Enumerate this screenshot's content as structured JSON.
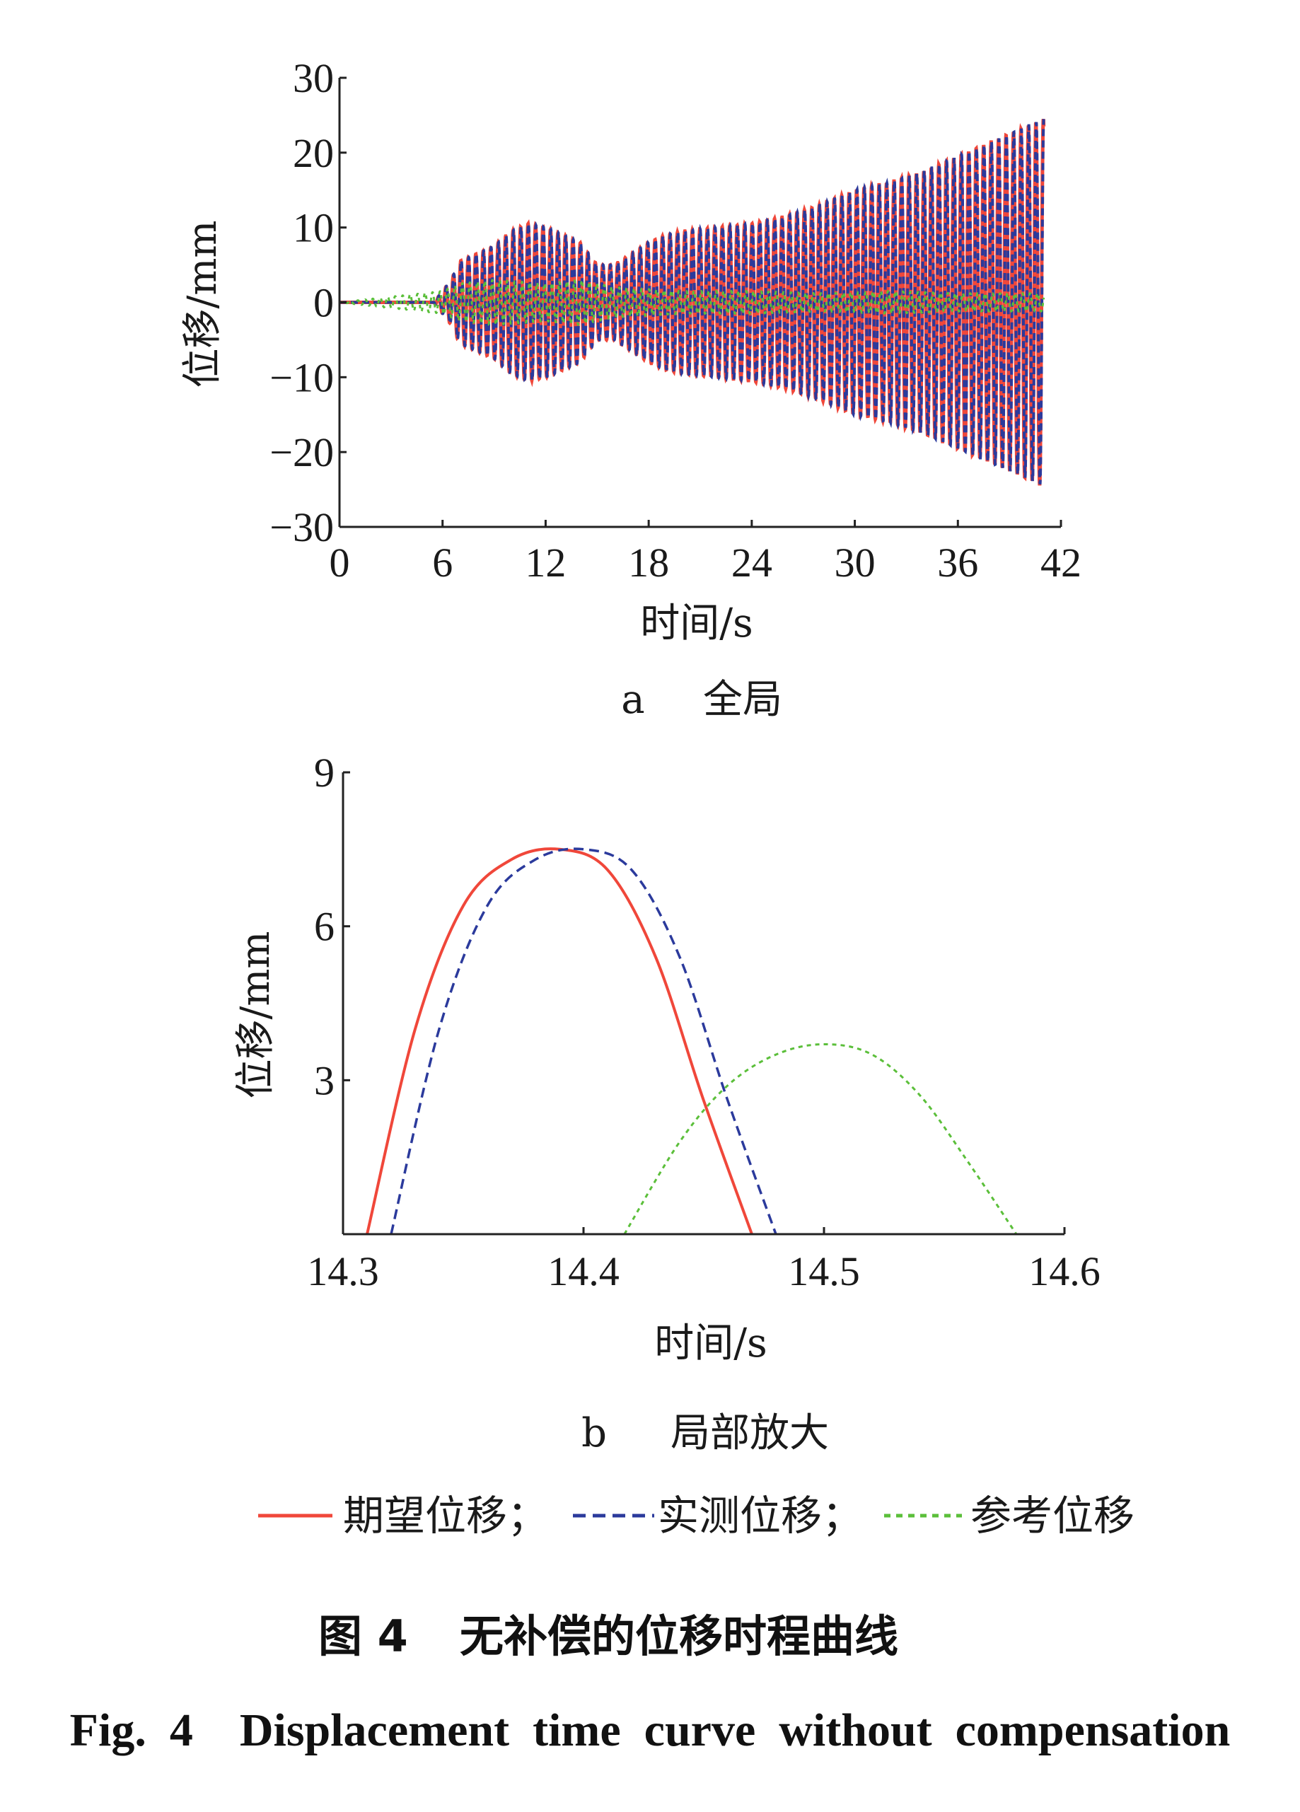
{
  "colors": {
    "expected": "#f0473a",
    "measured": "#2b3a9c",
    "reference": "#5bbf3a",
    "axis": "#222222"
  },
  "chart_data": [
    {
      "type": "line",
      "subtitle_letter": "a",
      "subtitle": "全局",
      "xlabel": "时间/s",
      "ylabel": "位移/mm",
      "xlim": [
        0,
        42
      ],
      "ylim": [
        -30,
        30
      ],
      "xticks": [
        "0",
        "6",
        "12",
        "18",
        "24",
        "30",
        "36",
        "42"
      ],
      "yticks": [
        "30",
        "20",
        "10",
        "0",
        "−10",
        "−20",
        "−30"
      ],
      "envelope": {
        "t": [
          0,
          5.5,
          6,
          6.5,
          7,
          7.5,
          8,
          9,
          10,
          11,
          12,
          13,
          14,
          15,
          16,
          17,
          18,
          19,
          20,
          22,
          24,
          26,
          28,
          30,
          32,
          34,
          36,
          38,
          40,
          41
        ],
        "amplitude": [
          0,
          0,
          1.5,
          3,
          5.5,
          6,
          6.5,
          7.5,
          9.5,
          10.5,
          10,
          9,
          8,
          5,
          5,
          6.5,
          8,
          9,
          9.5,
          10,
          10.5,
          11.5,
          13,
          15,
          16,
          17.5,
          19.5,
          21.5,
          23.5,
          24.5
        ]
      },
      "reference_amplitude": {
        "t": [
          0,
          6,
          7,
          9,
          12,
          14,
          16,
          20,
          24,
          28,
          32,
          36,
          41
        ],
        "amplitude": [
          0,
          1.5,
          2.5,
          3,
          2.5,
          3,
          2,
          1.5,
          1.5,
          1.2,
          1.5,
          1.2,
          1.2
        ]
      },
      "series": [
        {
          "name": "期望位移"
        },
        {
          "name": "实测位移"
        },
        {
          "name": "参考位移"
        }
      ]
    },
    {
      "type": "line",
      "subtitle_letter": "b",
      "subtitle": "局部放大",
      "xlabel": "时间/s",
      "ylabel": "位移/mm",
      "xlim": [
        14.3,
        14.6
      ],
      "ylim": [
        0,
        9
      ],
      "xticks": [
        "14.3",
        "14.4",
        "14.5",
        "14.6"
      ],
      "yticks": [
        "9",
        "6",
        "3"
      ],
      "series": [
        {
          "name": "期望位移",
          "x": [
            14.31,
            14.33,
            14.35,
            14.37,
            14.39,
            14.41,
            14.43,
            14.45,
            14.47
          ],
          "y": [
            0.0,
            4.0,
            6.4,
            7.3,
            7.5,
            7.1,
            5.4,
            2.6,
            0.0
          ]
        },
        {
          "name": "实测位移",
          "x": [
            14.32,
            14.34,
            14.36,
            14.38,
            14.4,
            14.42,
            14.44,
            14.46,
            14.48
          ],
          "y": [
            0.0,
            4.0,
            6.4,
            7.3,
            7.5,
            7.1,
            5.4,
            2.6,
            0.0
          ]
        },
        {
          "name": "参考位移",
          "x": [
            14.417,
            14.44,
            14.46,
            14.48,
            14.5,
            14.52,
            14.54,
            14.56,
            14.58
          ],
          "y": [
            0.0,
            1.8,
            2.9,
            3.5,
            3.7,
            3.5,
            2.7,
            1.4,
            0.0
          ]
        }
      ]
    }
  ],
  "legend": {
    "items": [
      {
        "label": "期望位移；",
        "key": "expected"
      },
      {
        "label": "实测位移；",
        "key": "measured"
      },
      {
        "label": "参考位移",
        "key": "reference"
      }
    ]
  },
  "caption": {
    "cn_number": "图 4",
    "cn_title": "无补偿的位移时程曲线",
    "en": "Fig.  4    Displacement  time  curve  without  compensation"
  }
}
